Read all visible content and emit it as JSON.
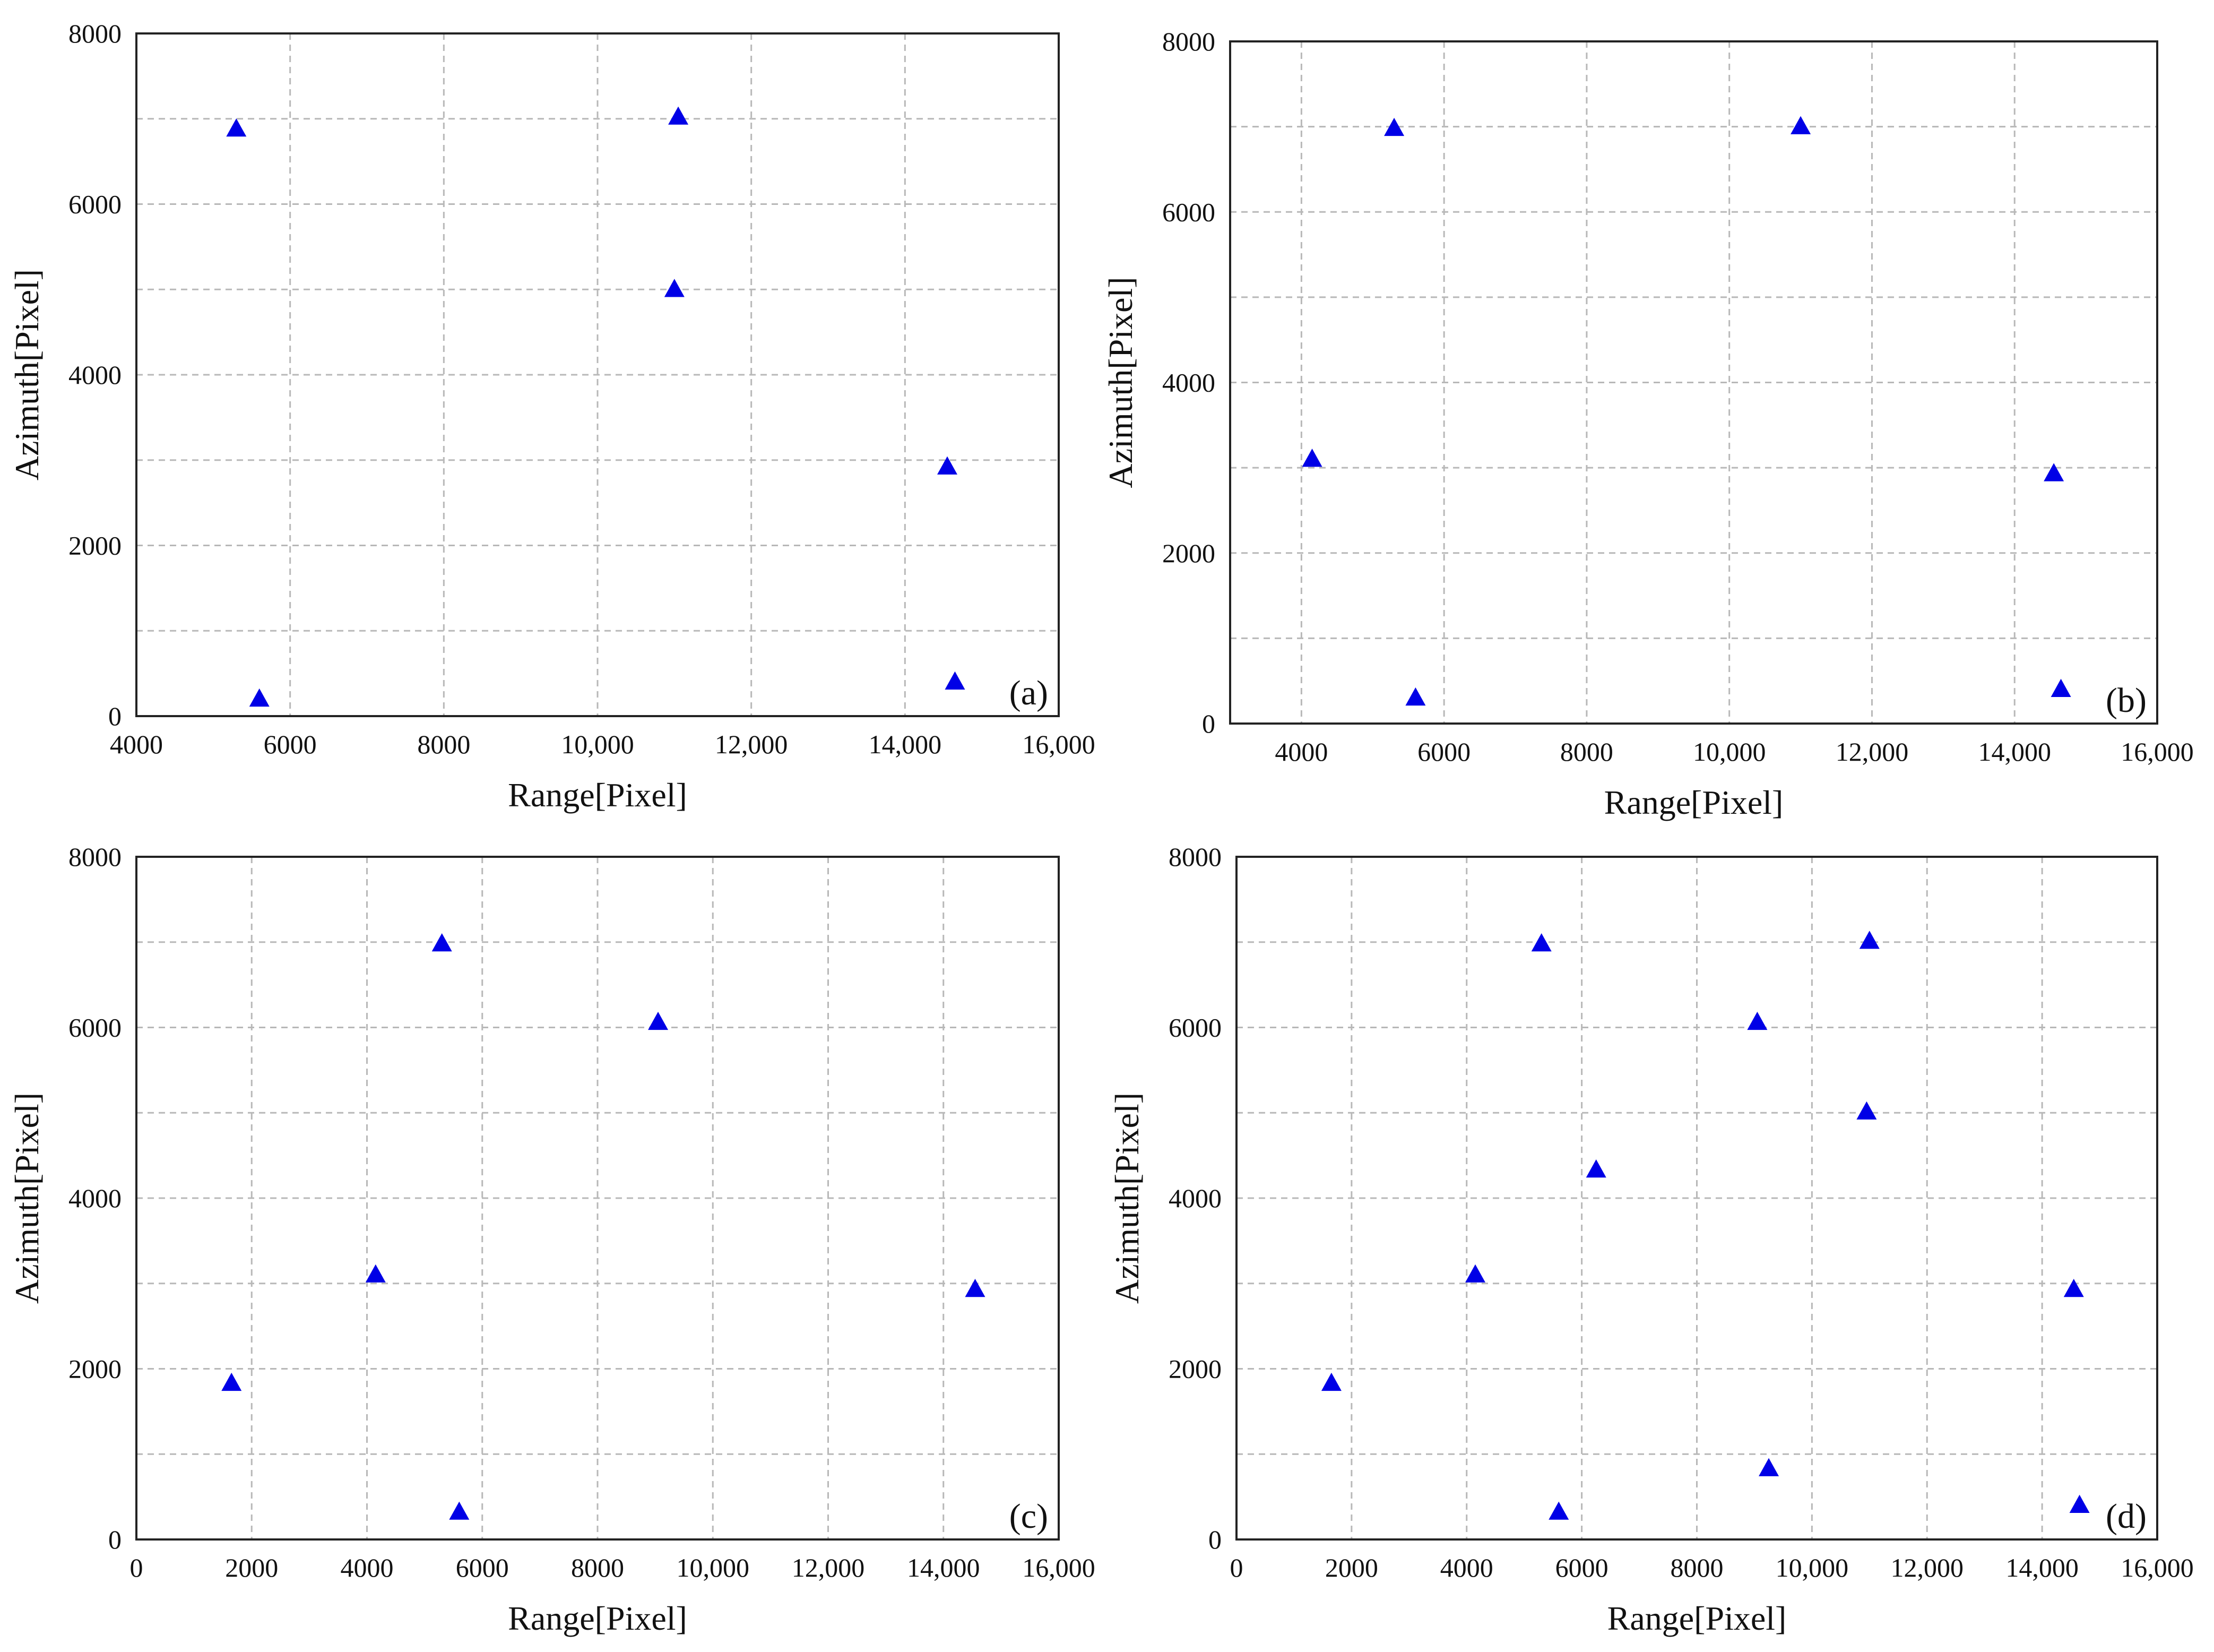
{
  "figure": {
    "colors": {
      "marker": "#0000e6",
      "grid": "#b8b8b8",
      "frame": "#222222",
      "text": "#111111"
    },
    "marker_shape": "triangle-up"
  },
  "chart_data": [
    {
      "type": "scatter",
      "panel_label": "(a)",
      "xlabel": "Range[Pixel]",
      "ylabel": "Azimuth[Pixel]",
      "xlim": [
        4000,
        16000
      ],
      "ylim": [
        0,
        8000
      ],
      "xticks": [
        4000,
        6000,
        8000,
        10000,
        12000,
        14000,
        16000
      ],
      "xtick_labels": [
        "4000",
        "6000",
        "8000",
        "10,000",
        "12,000",
        "14,000",
        "16,000"
      ],
      "yticks": [
        0,
        2000,
        4000,
        6000,
        8000
      ],
      "ytick_labels": [
        "0",
        "2000",
        "4000",
        "6000",
        "8000"
      ],
      "x_grid_step": 2000,
      "y_grid_step": 1000,
      "grid": true,
      "points": [
        {
          "x": 5300,
          "y": 6880
        },
        {
          "x": 5600,
          "y": 200
        },
        {
          "x": 11050,
          "y": 7020
        },
        {
          "x": 11000,
          "y": 5000
        },
        {
          "x": 14550,
          "y": 2920
        },
        {
          "x": 14650,
          "y": 400
        }
      ]
    },
    {
      "type": "scatter",
      "panel_label": "(b)",
      "xlabel": "Range[Pixel]",
      "ylabel": "Azimuth[Pixel]",
      "xlim": [
        3000,
        16000
      ],
      "ylim": [
        0,
        8000
      ],
      "xticks": [
        4000,
        6000,
        8000,
        10000,
        12000,
        14000,
        16000
      ],
      "xtick_labels": [
        "4000",
        "6000",
        "8000",
        "10,000",
        "12,000",
        "14,000",
        "16,000"
      ],
      "yticks": [
        0,
        2000,
        4000,
        6000,
        8000
      ],
      "ytick_labels": [
        "0",
        "2000",
        "4000",
        "6000",
        "8000"
      ],
      "x_grid_step": 2000,
      "y_grid_step": 1000,
      "grid": true,
      "points": [
        {
          "x": 4150,
          "y": 3100
        },
        {
          "x": 5300,
          "y": 6980
        },
        {
          "x": 5600,
          "y": 300
        },
        {
          "x": 11000,
          "y": 7000
        },
        {
          "x": 14550,
          "y": 2930
        },
        {
          "x": 14650,
          "y": 400
        }
      ]
    },
    {
      "type": "scatter",
      "panel_label": "(c)",
      "xlabel": "Range[Pixel]",
      "ylabel": "Azimuth[Pixel]",
      "xlim": [
        0,
        16000
      ],
      "ylim": [
        0,
        8000
      ],
      "xticks": [
        0,
        2000,
        4000,
        6000,
        8000,
        10000,
        12000,
        14000,
        16000
      ],
      "xtick_labels": [
        "0",
        "2000",
        "4000",
        "6000",
        "8000",
        "10,000",
        "12,000",
        "14,000",
        "16,000"
      ],
      "yticks": [
        0,
        2000,
        4000,
        6000,
        8000
      ],
      "ytick_labels": [
        "0",
        "2000",
        "4000",
        "6000",
        "8000"
      ],
      "x_grid_step": 2000,
      "y_grid_step": 1000,
      "grid": true,
      "points": [
        {
          "x": 1650,
          "y": 1830
        },
        {
          "x": 4150,
          "y": 3100
        },
        {
          "x": 5300,
          "y": 6980
        },
        {
          "x": 5600,
          "y": 320
        },
        {
          "x": 9050,
          "y": 6060
        },
        {
          "x": 14550,
          "y": 2930
        }
      ]
    },
    {
      "type": "scatter",
      "panel_label": "(d)",
      "xlabel": "Range[Pixel]",
      "ylabel": "Azimuth[Pixel]",
      "xlim": [
        0,
        16000
      ],
      "ylim": [
        0,
        8000
      ],
      "xticks": [
        0,
        2000,
        4000,
        6000,
        8000,
        10000,
        12000,
        14000,
        16000
      ],
      "xtick_labels": [
        "0",
        "2000",
        "4000",
        "6000",
        "8000",
        "10,000",
        "12,000",
        "14,000",
        "16,000"
      ],
      "yticks": [
        0,
        2000,
        4000,
        6000,
        8000
      ],
      "ytick_labels": [
        "0",
        "2000",
        "4000",
        "6000",
        "8000"
      ],
      "x_grid_step": 2000,
      "y_grid_step": 1000,
      "grid": true,
      "points": [
        {
          "x": 1650,
          "y": 1830
        },
        {
          "x": 4150,
          "y": 3100
        },
        {
          "x": 5300,
          "y": 6980
        },
        {
          "x": 5600,
          "y": 320
        },
        {
          "x": 6250,
          "y": 4330
        },
        {
          "x": 9050,
          "y": 6060
        },
        {
          "x": 9250,
          "y": 830
        },
        {
          "x": 11000,
          "y": 7010
        },
        {
          "x": 10950,
          "y": 5010
        },
        {
          "x": 14550,
          "y": 2930
        },
        {
          "x": 14650,
          "y": 400
        }
      ]
    }
  ]
}
